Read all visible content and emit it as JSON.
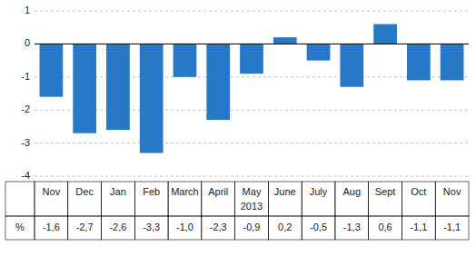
{
  "chart_data": {
    "type": "bar",
    "categories": [
      "Nov",
      "Dec",
      "Jan",
      "Feb",
      "March",
      "April",
      "May",
      "June",
      "July",
      "Aug",
      "Sept",
      "Oct",
      "Nov"
    ],
    "values": [
      -1.6,
      -2.7,
      -2.6,
      -3.3,
      -1.0,
      -2.3,
      -0.9,
      0.2,
      -0.5,
      -1.3,
      0.6,
      -1.1,
      -1.1
    ],
    "value_labels": [
      "-1,6",
      "-2,7",
      "-2,6",
      "-3,3",
      "-1,0",
      "-2,3",
      "-0,9",
      "0,2",
      "-0,5",
      "-1,3",
      "0,6",
      "-1,1",
      "-1,1"
    ],
    "data_labels": true,
    "color": "#2878c8",
    "ylim": [
      -4,
      1
    ],
    "yticks": [
      -4,
      -3,
      -2,
      -1,
      0,
      1
    ],
    "grid": true,
    "xlabel": "2013",
    "annotations": [
      "%"
    ]
  }
}
